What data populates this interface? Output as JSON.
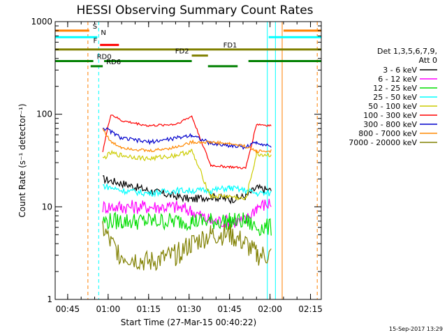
{
  "chart_data": {
    "type": "line",
    "title": "HESSI Observing Summary Count Rates",
    "xlabel": "Start Time (27-Mar-15 00:40:22)",
    "ylabel": "Count Rate (s⁻¹ detector⁻¹)",
    "y_scale": "log",
    "ylim": [
      1,
      1000
    ],
    "xlim": [
      "00:40:22",
      "02:19:00"
    ],
    "x_ticks": [
      "00:45",
      "01:00",
      "01:15",
      "01:30",
      "01:45",
      "02:00",
      "02:15"
    ],
    "y_ticks": [
      "1",
      "10",
      "100",
      "1000"
    ],
    "grid": false,
    "legend_position": "right",
    "legend_header": [
      "Det 1,3,5,6,7,9,",
      "Att 0"
    ],
    "series": [
      {
        "name": "3 - 6 keV",
        "color": "#000000",
        "x": [
          "00:58:00",
          "01:05:00",
          "01:15:00",
          "01:25:00",
          "01:31:00",
          "01:38:00",
          "01:45:00",
          "01:51:00",
          "01:55:00",
          "02:00:30"
        ],
        "y": [
          20,
          18,
          15,
          13,
          12,
          13,
          12,
          13,
          16,
          15
        ]
      },
      {
        "name": "6 - 12 keV",
        "color": "#ff00ff",
        "x": [
          "00:58:00",
          "01:05:00",
          "01:15:00",
          "01:25:00",
          "01:31:00",
          "01:38:00",
          "01:45:00",
          "01:51:00",
          "01:55:00",
          "02:00:30"
        ],
        "y": [
          10,
          10,
          10,
          10,
          9,
          7,
          7,
          7,
          10,
          11
        ]
      },
      {
        "name": "12 - 25 keV",
        "color": "#00dd00",
        "x": [
          "00:58:00",
          "01:05:00",
          "01:15:00",
          "01:25:00",
          "01:31:00",
          "01:38:00",
          "01:45:00",
          "01:51:00",
          "01:55:00",
          "02:00:30"
        ],
        "y": [
          7,
          7,
          7,
          7,
          7,
          7,
          7,
          7,
          6,
          6
        ]
      },
      {
        "name": "25 - 50 keV",
        "color": "#00ffff",
        "x": [
          "00:58:00",
          "01:05:00",
          "01:15:00",
          "01:25:00",
          "01:31:00",
          "01:38:00",
          "01:45:00",
          "01:51:00",
          "01:55:00",
          "02:00:30"
        ],
        "y": [
          17,
          15,
          14,
          15,
          15,
          15,
          16,
          15,
          14,
          14
        ]
      },
      {
        "name": "50 - 100 keV",
        "color": "#cccc00",
        "x": [
          "00:58:00",
          "01:01:00",
          "01:05:00",
          "01:15:00",
          "01:25:00",
          "01:31:00",
          "01:38:00",
          "01:45:00",
          "01:51:00",
          "01:55:00",
          "02:00:30"
        ],
        "y": [
          33,
          38,
          36,
          33,
          36,
          40,
          13,
          13,
          12,
          37,
          36
        ]
      },
      {
        "name": "100 - 300 keV",
        "color": "#ff0000",
        "x": [
          "00:58:00",
          "01:01:00",
          "01:05:00",
          "01:15:00",
          "01:25:00",
          "01:31:00",
          "01:38:00",
          "01:45:00",
          "01:51:00",
          "01:55:00",
          "02:00:30"
        ],
        "y": [
          40,
          100,
          85,
          75,
          78,
          95,
          28,
          27,
          26,
          78,
          75
        ]
      },
      {
        "name": "300 - 800 keV",
        "color": "#0000cc",
        "x": [
          "00:58:00",
          "01:01:00",
          "01:05:00",
          "01:15:00",
          "01:25:00",
          "01:31:00",
          "01:38:00",
          "01:45:00",
          "01:51:00",
          "01:55:00",
          "02:00:30"
        ],
        "y": [
          72,
          65,
          55,
          50,
          55,
          60,
          48,
          46,
          44,
          50,
          45
        ]
      },
      {
        "name": "800 - 7000 keV",
        "color": "#ff8800",
        "x": [
          "00:58:00",
          "01:01:00",
          "01:05:00",
          "01:15:00",
          "01:25:00",
          "01:31:00",
          "01:38:00",
          "01:45:00",
          "01:51:00",
          "01:55:00",
          "02:00:30"
        ],
        "y": [
          70,
          50,
          44,
          40,
          44,
          50,
          50,
          48,
          45,
          40,
          40
        ]
      },
      {
        "name": "7000 - 20000 keV",
        "color": "#808000",
        "x": [
          "00:58:00",
          "01:01:00",
          "01:05:00",
          "01:15:00",
          "01:25:00",
          "01:31:00",
          "01:38:00",
          "01:45:00",
          "01:51:00",
          "01:55:00",
          "02:00:30"
        ],
        "y": [
          6,
          4,
          3,
          2.5,
          3,
          4,
          5,
          5,
          4,
          3,
          3
        ]
      }
    ],
    "flag_bars": [
      {
        "label": "S",
        "color": "#ff8000",
        "y": 800,
        "segments": [
          [
            "00:40:22",
            "00:53:00"
          ],
          [
            "02:05:00",
            "02:19:00"
          ]
        ]
      },
      {
        "label": "N",
        "color": "#00ffff",
        "y": 680,
        "segments": [
          [
            "00:40:22",
            "00:56:00"
          ],
          [
            "01:59:30",
            "02:19:00"
          ]
        ]
      },
      {
        "label": "F",
        "color": "#ff0000",
        "y": 560,
        "segments": [
          [
            "00:57:00",
            "01:04:00"
          ]
        ]
      },
      {
        "label": "FD1",
        "color": "#808000",
        "y": 500,
        "segments": [
          [
            "00:40:22",
            "02:19:00"
          ]
        ]
      },
      {
        "label": "FD2",
        "color": "#808000",
        "y": 430,
        "segments": [
          [
            "01:31:00",
            "01:37:00"
          ]
        ]
      },
      {
        "label": "RD0",
        "color": "#008000",
        "y": 375,
        "segments": [
          [
            "00:40:22",
            "00:54:30"
          ],
          [
            "00:58:30",
            "01:31:00"
          ],
          [
            "01:52:00",
            "02:19:00"
          ]
        ]
      },
      {
        "label": "RD6",
        "color": "#008000",
        "y": 330,
        "segments": [
          [
            "00:53:30",
            "00:58:00"
          ],
          [
            "01:37:00",
            "01:48:00"
          ]
        ]
      }
    ],
    "vertical_markers": [
      {
        "x": "00:52:30",
        "color": "#ff8000",
        "style": "dashed"
      },
      {
        "x": "00:56:30",
        "color": "#00ffff",
        "style": "dashed"
      },
      {
        "x": "01:59:00",
        "color": "#00ffff",
        "style": "solid"
      },
      {
        "x": "02:02:00",
        "color": "#00ffff",
        "style": "solid"
      },
      {
        "x": "02:04:30",
        "color": "#ff8000",
        "style": "solid"
      },
      {
        "x": "02:17:30",
        "color": "#ff8000",
        "style": "dashed"
      }
    ],
    "footer_date": "15-Sep-2017 13:29"
  }
}
